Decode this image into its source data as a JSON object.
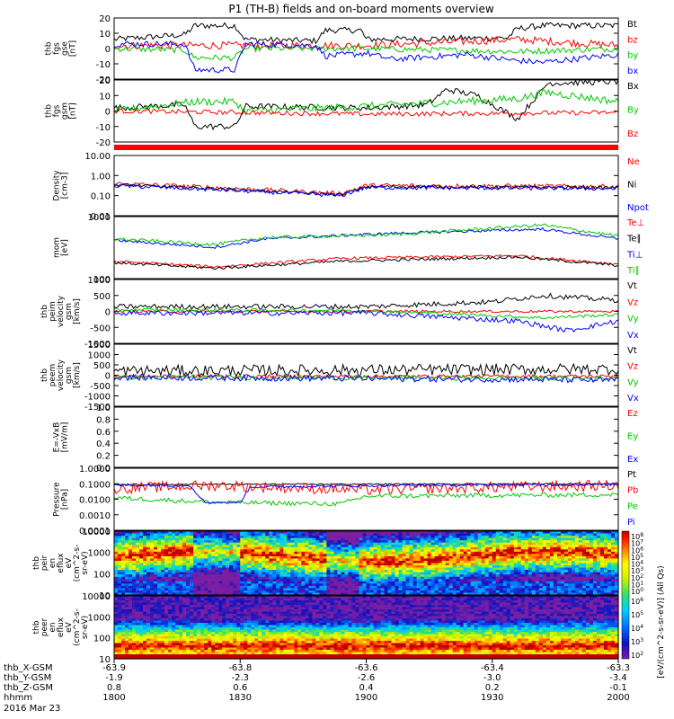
{
  "title": "P1  (TH-B) fields and on-board moments overview",
  "chart_data": [
    {
      "type": "line",
      "panel": "fgs-gse",
      "ylabel": [
        "thb",
        "fgs",
        "gse",
        "[nT]"
      ],
      "yticks": [
        "20",
        "10",
        "0",
        "-10",
        "-20"
      ],
      "ylim": [
        -20,
        20
      ],
      "series": [
        {
          "name": "Bt",
          "color": "#000000"
        },
        {
          "name": "bz",
          "color": "#ff0000"
        },
        {
          "name": "by",
          "color": "#00c800"
        },
        {
          "name": "bx",
          "color": "#0000ff"
        }
      ]
    },
    {
      "type": "line",
      "panel": "fgs-gsm",
      "ylabel": [
        "thb",
        "fgs",
        "gsm",
        "[nT]"
      ],
      "yticks": [
        "20",
        "10",
        "0",
        "-10",
        "-20"
      ],
      "ylim": [
        -20,
        20
      ],
      "series": [
        {
          "name": "Bx",
          "color": "#000000"
        },
        {
          "name": "By",
          "color": "#00c800"
        },
        {
          "name": "Bz",
          "color": "#ff0000"
        }
      ]
    },
    {
      "type": "line",
      "panel": "density",
      "scale": "log",
      "ylabel": [
        "Density",
        "[cm-3]"
      ],
      "yticks": [
        "10.00",
        "1.00",
        "0.10",
        "0.01"
      ],
      "ylim": [
        0.01,
        10
      ],
      "series": [
        {
          "name": "Ne",
          "color": "#ff0000"
        },
        {
          "name": "Ni",
          "color": "#000000"
        },
        {
          "name": "Npot",
          "color": "#0000ff"
        }
      ]
    },
    {
      "type": "line",
      "panel": "temperature",
      "scale": "log",
      "ylabel": [
        "mom",
        "[eV]"
      ],
      "yticks": [
        "1000",
        "100"
      ],
      "series": [
        {
          "name": "Te⊥",
          "color": "#ff0000"
        },
        {
          "name": "Te∥",
          "color": "#000000"
        },
        {
          "name": "Ti⊥",
          "color": "#0000ff"
        },
        {
          "name": "Ti∥",
          "color": "#00c800"
        }
      ]
    },
    {
      "type": "line",
      "panel": "peim-velocity",
      "ylabel": [
        "thb",
        "peim",
        "velocity",
        "gsm",
        "[km/s]"
      ],
      "yticks": [
        "1000",
        "500",
        "0",
        "-500",
        "-1000"
      ],
      "ylim": [
        -1000,
        1000
      ],
      "series": [
        {
          "name": "Vt",
          "color": "#000000"
        },
        {
          "name": "Vz",
          "color": "#ff0000"
        },
        {
          "name": "Vy",
          "color": "#00c800"
        },
        {
          "name": "Vx",
          "color": "#0000ff"
        }
      ]
    },
    {
      "type": "line",
      "panel": "peem-velocity",
      "ylabel": [
        "thb",
        "peem",
        "velocity",
        "gsm",
        "[km/s]"
      ],
      "yticks": [
        "1500",
        "1000",
        "500",
        "0",
        "-500",
        "-1000",
        "-1500"
      ],
      "ylim": [
        -1500,
        1500
      ],
      "series": [
        {
          "name": "Vt",
          "color": "#000000"
        },
        {
          "name": "Vz",
          "color": "#ff0000"
        },
        {
          "name": "Vy",
          "color": "#00c800"
        },
        {
          "name": "Vx",
          "color": "#0000ff"
        }
      ]
    },
    {
      "type": "line",
      "panel": "efield",
      "ylabel": [
        "E=-VxB",
        "[mV/m]"
      ],
      "yticks": [
        "1.0",
        "0.8",
        "0.6",
        "0.4",
        "0.2",
        "0.0"
      ],
      "ylim": [
        0,
        1
      ],
      "series": [
        {
          "name": "Ez",
          "color": "#ff0000"
        },
        {
          "name": "Ey",
          "color": "#00c800"
        },
        {
          "name": "Ex",
          "color": "#0000ff"
        }
      ]
    },
    {
      "type": "line",
      "panel": "pressure",
      "scale": "log",
      "ylabel": [
        "Pressure",
        "[nPa]"
      ],
      "yticks": [
        "1.0000",
        "0.1000",
        "0.0100",
        "0.0010",
        "0.0001"
      ],
      "ylim": [
        0.0001,
        1
      ],
      "series": [
        {
          "name": "Pt",
          "color": "#000000"
        },
        {
          "name": "Pb",
          "color": "#ff0000"
        },
        {
          "name": "Pe",
          "color": "#00c800"
        },
        {
          "name": "Pi",
          "color": "#0000ff"
        }
      ]
    },
    {
      "type": "heatmap",
      "panel": "peir-spectrogram",
      "scale": "log",
      "ylabel": [
        "thb",
        "peir",
        "en",
        "eflux",
        "eV",
        "(cm^2-s-",
        "sr-eV)"
      ],
      "yticks": [
        "10000",
        "1000",
        "100",
        "10"
      ],
      "ylim": [
        5,
        30000
      ]
    },
    {
      "type": "heatmap",
      "panel": "peer-spectrogram",
      "scale": "log",
      "ylabel": [
        "thb",
        "peer",
        "en",
        "eflux",
        "eV",
        "(cm^2-s-",
        "sr-eV)"
      ],
      "yticks": [
        "10000",
        "1000",
        "100",
        "10"
      ],
      "ylim": [
        5,
        30000
      ]
    }
  ],
  "colorbar": {
    "label": "[eV/(cm^2-s-sr-eV)] (All Qs)",
    "ticks_top": [
      "10^8",
      "10^7",
      "10^6",
      "10^5",
      "10^4",
      "10^3",
      "10^2",
      "10^1",
      "10^0"
    ],
    "ticks_bottom": [
      "10^6",
      "10^5",
      "10^4",
      "10^3",
      "10^2"
    ]
  },
  "xaxis": {
    "rows": [
      {
        "label": "thb_X-GSM",
        "values": [
          "-63.9",
          "-63.8",
          "-63.6",
          "-63.4",
          "-63.3"
        ]
      },
      {
        "label": "thb_Y-GSM",
        "values": [
          "-1.9",
          "-2.3",
          "-2.6",
          "-3.0",
          "-3.4"
        ]
      },
      {
        "label": "thb_Z-GSM",
        "values": [
          "0.8",
          "0.6",
          "0.4",
          "0.2",
          "-0.1"
        ]
      },
      {
        "label": "hhmm",
        "values": [
          "1800",
          "1830",
          "1900",
          "1930",
          "2000"
        ]
      }
    ],
    "date": "2016 Mar 23"
  }
}
